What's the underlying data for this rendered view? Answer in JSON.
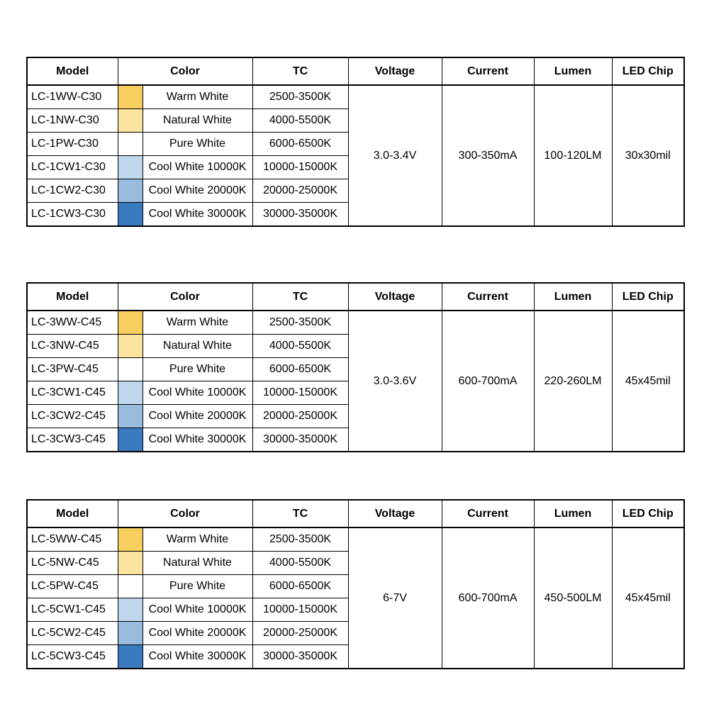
{
  "page": {
    "background": "#ffffff",
    "border_color": "#000000"
  },
  "tables": [
    {
      "headers": {
        "model": "Model",
        "color": "Color",
        "tc": "TC",
        "voltage": "Voltage",
        "current": "Current",
        "lumen": "Lumen",
        "led_chip": "LED Chip"
      },
      "rows": [
        {
          "model": "LC-1WW-C30",
          "swatch": "#F7CF5F",
          "color": "Warm White",
          "tc": "2500-3500K"
        },
        {
          "model": "LC-1NW-C30",
          "swatch": "#FBE4A0",
          "color": "Natural White",
          "tc": "4000-5500K"
        },
        {
          "model": "LC-1PW-C30",
          "swatch": "#FFFFFF",
          "color": "Pure White",
          "tc": "6000-6500K"
        },
        {
          "model": "LC-1CW1-C30",
          "swatch": "#BFD7EC",
          "color": "Cool White 10000K",
          "tc": "10000-15000K"
        },
        {
          "model": "LC-1CW2-C30",
          "swatch": "#99BBDE",
          "color": "Cool White 20000K",
          "tc": "20000-25000K"
        },
        {
          "model": "LC-1CW3-C30",
          "swatch": "#3A7ABF",
          "color": "Cool White 30000K",
          "tc": "30000-35000K"
        }
      ],
      "voltage": "3.0-3.4V",
      "current": "300-350mA",
      "lumen": "100-120LM",
      "led_chip": "30x30mil"
    },
    {
      "headers": {
        "model": "Model",
        "color": "Color",
        "tc": "TC",
        "voltage": "Voltage",
        "current": "Current",
        "lumen": "Lumen",
        "led_chip": "LED Chip"
      },
      "rows": [
        {
          "model": "LC-3WW-C45",
          "swatch": "#F7CF5F",
          "color": "Warm White",
          "tc": "2500-3500K"
        },
        {
          "model": "LC-3NW-C45",
          "swatch": "#FBE4A0",
          "color": "Natural White",
          "tc": "4000-5500K"
        },
        {
          "model": "LC-3PW-C45",
          "swatch": "#FFFFFF",
          "color": "Pure White",
          "tc": "6000-6500K"
        },
        {
          "model": "LC-3CW1-C45",
          "swatch": "#BFD7EC",
          "color": "Cool White 10000K",
          "tc": "10000-15000K"
        },
        {
          "model": "LC-3CW2-C45",
          "swatch": "#99BBDE",
          "color": "Cool White 20000K",
          "tc": "20000-25000K"
        },
        {
          "model": "LC-3CW3-C45",
          "swatch": "#3A7ABF",
          "color": "Cool White 30000K",
          "tc": "30000-35000K"
        }
      ],
      "voltage": "3.0-3.6V",
      "current": "600-700mA",
      "lumen": "220-260LM",
      "led_chip": "45x45mil"
    },
    {
      "headers": {
        "model": "Model",
        "color": "Color",
        "tc": "TC",
        "voltage": "Voltage",
        "current": "Current",
        "lumen": "Lumen",
        "led_chip": "LED Chip"
      },
      "rows": [
        {
          "model": "LC-5WW-C45",
          "swatch": "#F7CF5F",
          "color": "Warm White",
          "tc": "2500-3500K"
        },
        {
          "model": "LC-5NW-C45",
          "swatch": "#FBE4A0",
          "color": "Natural White",
          "tc": "4000-5500K"
        },
        {
          "model": "LC-5PW-C45",
          "swatch": "#FFFFFF",
          "color": "Pure White",
          "tc": "6000-6500K"
        },
        {
          "model": "LC-5CW1-C45",
          "swatch": "#BFD7EC",
          "color": "Cool White 10000K",
          "tc": "10000-15000K"
        },
        {
          "model": "LC-5CW2-C45",
          "swatch": "#99BBDE",
          "color": "Cool White 20000K",
          "tc": "20000-25000K"
        },
        {
          "model": "LC-5CW3-C45",
          "swatch": "#3A7ABF",
          "color": "Cool White 30000K",
          "tc": "30000-35000K"
        }
      ],
      "voltage": "6-7V",
      "current": "600-700mA",
      "lumen": "450-500LM",
      "led_chip": "45x45mil"
    }
  ]
}
